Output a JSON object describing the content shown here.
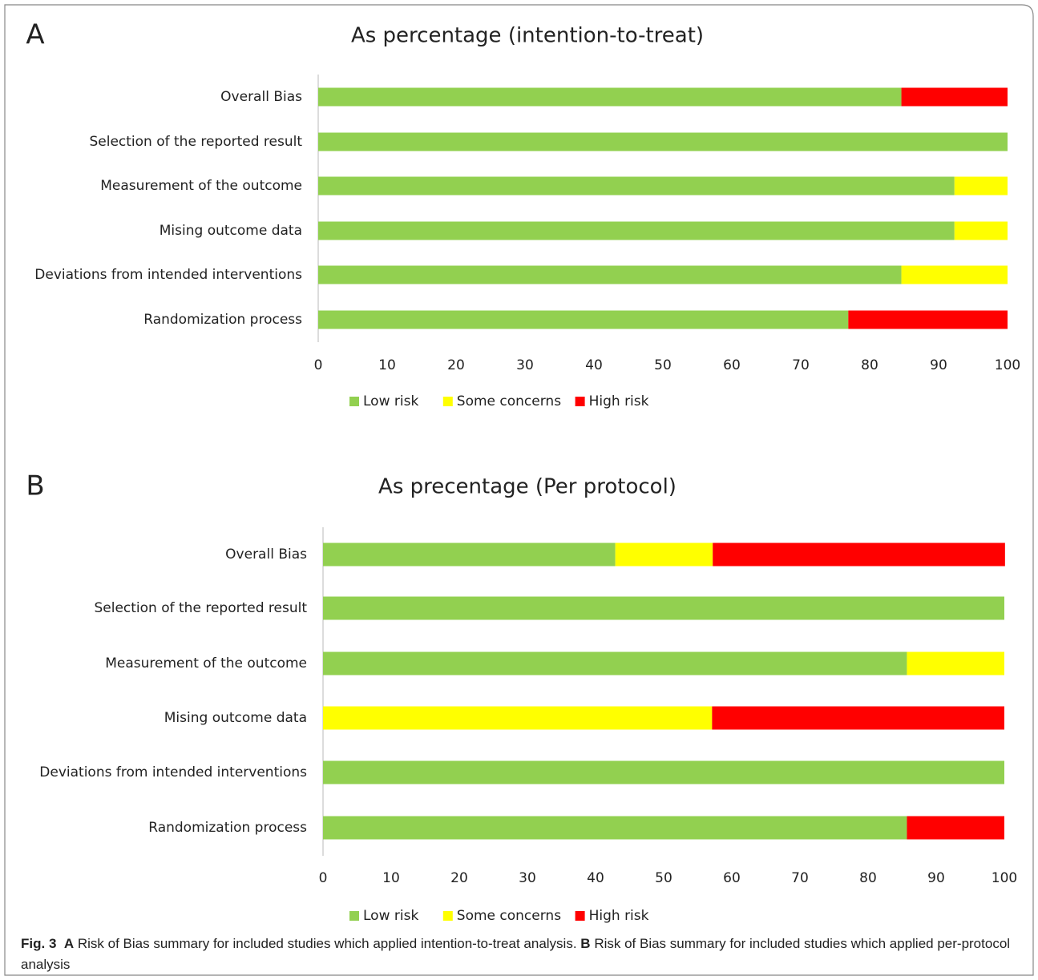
{
  "chart_data": [
    {
      "type": "stacked-barh",
      "panel_label": "A",
      "title": "As percentage (intention-to-treat)",
      "categories": [
        "Overall Bias",
        "Selection of the reported result",
        "Measurement of the outcome",
        "Mising outcome data",
        "Deviations from intended interventions",
        "Randomization process"
      ],
      "series": [
        {
          "name": "Low risk",
          "color": "#92d050",
          "values": [
            84.6,
            100,
            92.3,
            92.3,
            84.6,
            76.9
          ]
        },
        {
          "name": "Some concerns",
          "color": "#ffff00",
          "values": [
            0,
            0,
            7.7,
            7.7,
            15.4,
            0
          ]
        },
        {
          "name": "High risk",
          "color": "#ff0000",
          "values": [
            15.4,
            0,
            0,
            0,
            0,
            23.1
          ]
        }
      ],
      "xlim": [
        0,
        100
      ],
      "xticks": [
        0,
        10,
        20,
        30,
        40,
        50,
        60,
        70,
        80,
        90,
        100
      ],
      "legend": "bottom"
    },
    {
      "type": "stacked-barh",
      "panel_label": "B",
      "title": "As precentage (Per protocol)",
      "categories": [
        "Overall Bias",
        "Selection of the reported result",
        "Measurement of the outcome",
        "Mising outcome data",
        "Deviations from intended interventions",
        "Randomization process"
      ],
      "series": [
        {
          "name": "Low risk",
          "color": "#92d050",
          "values": [
            42.9,
            100,
            85.7,
            0,
            100,
            85.7
          ]
        },
        {
          "name": "Some concerns",
          "color": "#ffff00",
          "values": [
            14.3,
            0,
            14.3,
            57.1,
            0,
            0
          ]
        },
        {
          "name": "High risk",
          "color": "#ff0000",
          "values": [
            42.9,
            0,
            0,
            42.9,
            0,
            14.3
          ]
        }
      ],
      "xlim": [
        0,
        100
      ],
      "xticks": [
        0,
        10,
        20,
        30,
        40,
        50,
        60,
        70,
        80,
        90,
        100
      ],
      "legend": "bottom"
    }
  ],
  "caption": {
    "figure_label": "Fig. 3",
    "parts": [
      {
        "label": "A",
        "text": "Risk of Bias summary for included studies which applied intention-to-treat analysis."
      },
      {
        "label": "B",
        "text": "Risk of Bias summary for included studies which applied per-protocol analysis"
      }
    ]
  }
}
